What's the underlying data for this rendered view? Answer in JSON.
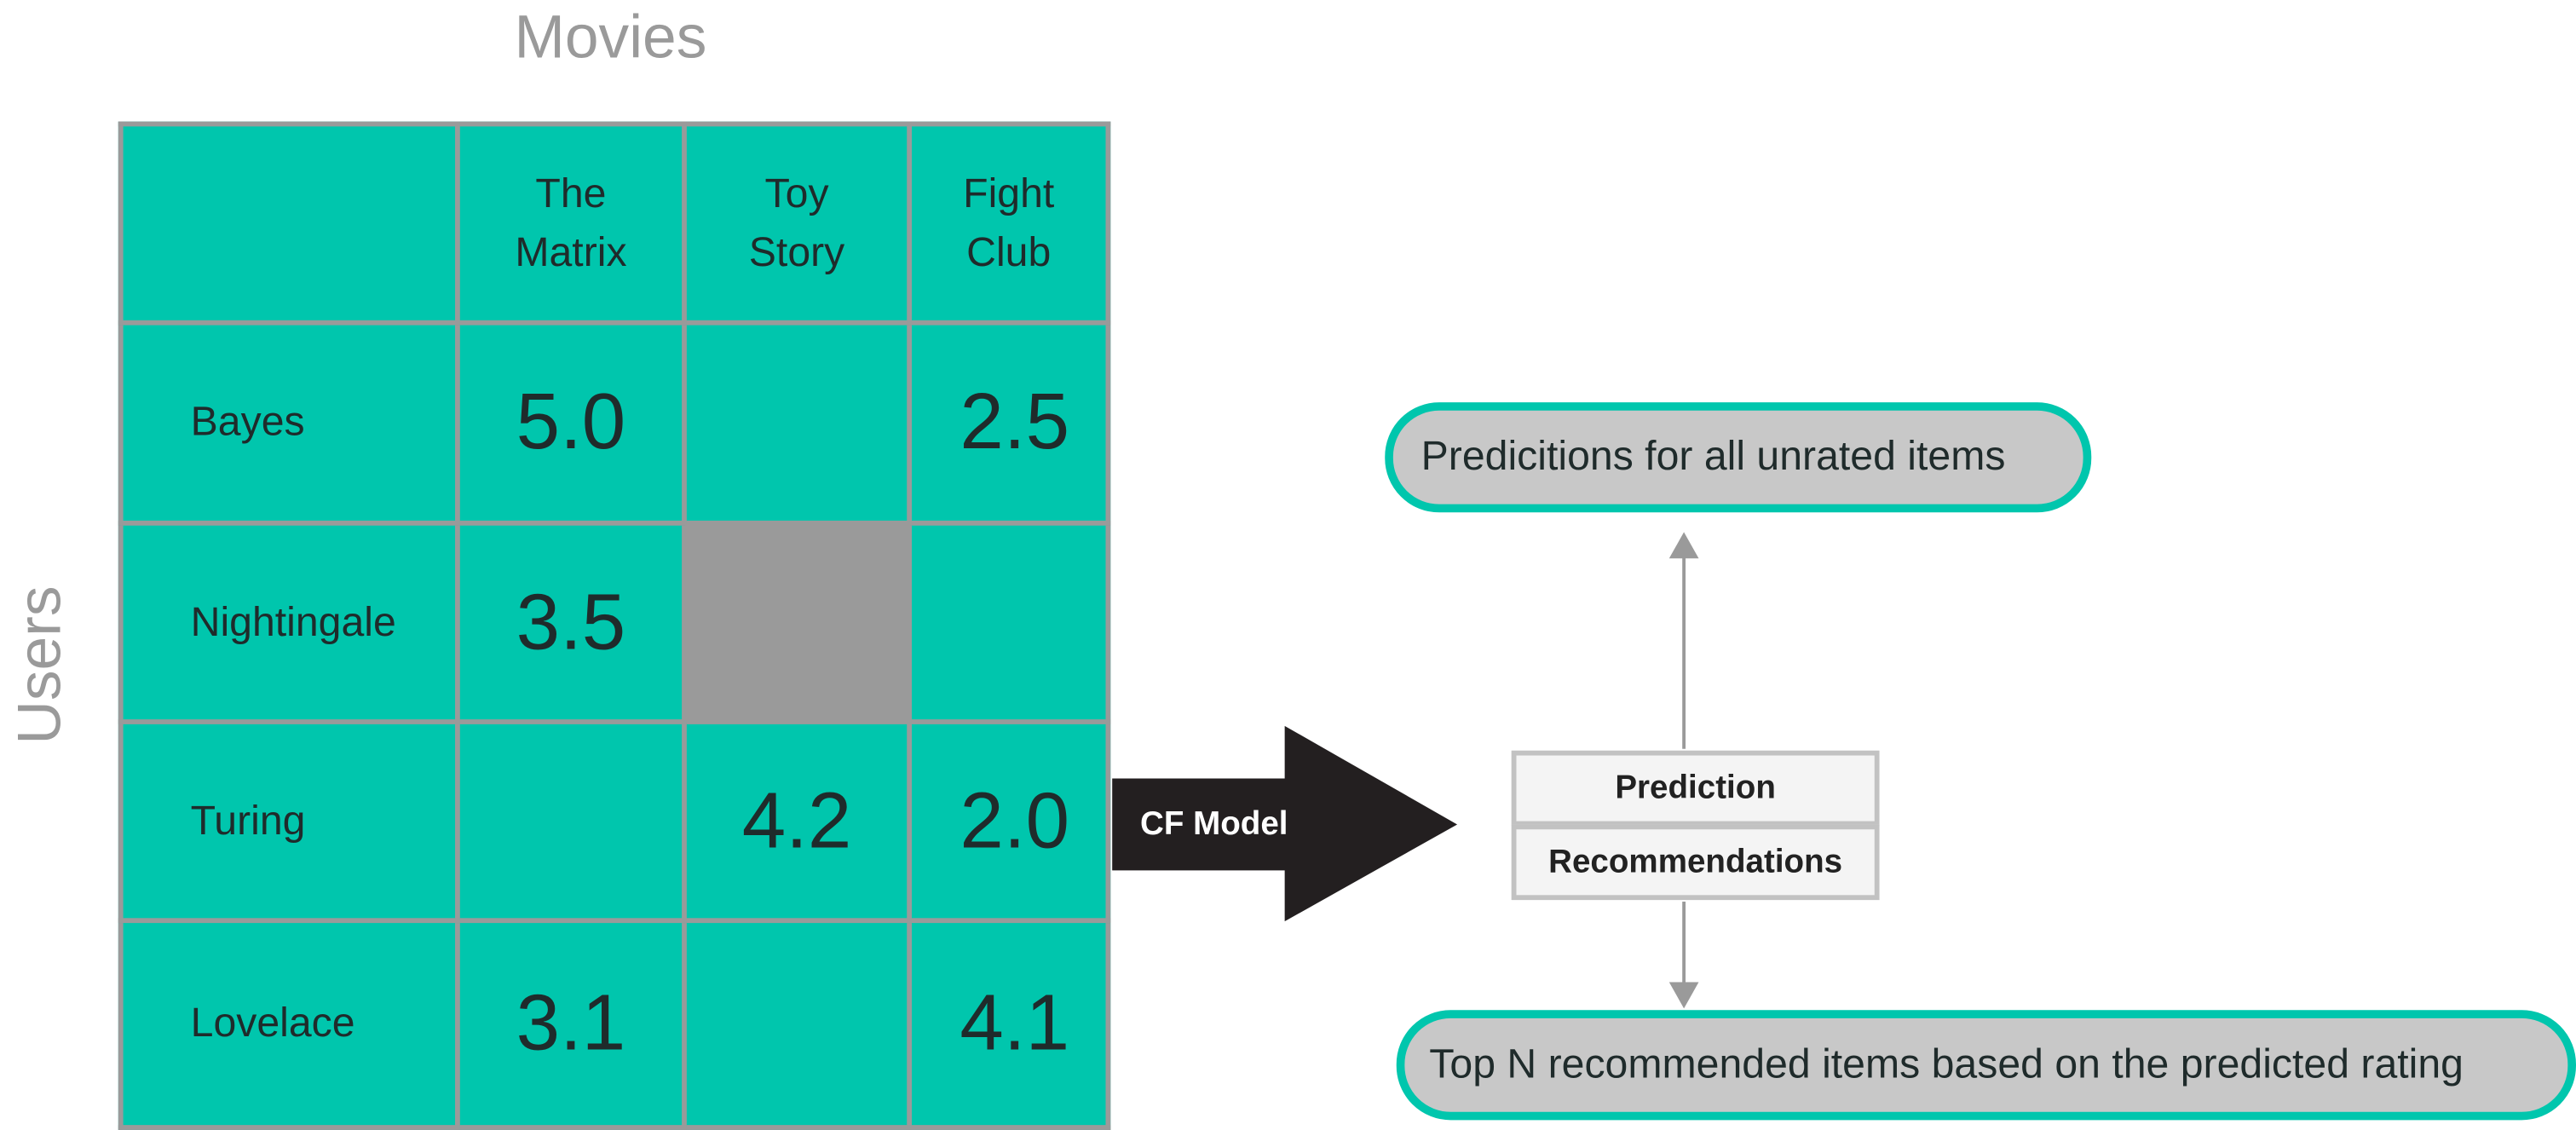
{
  "axis_titles": {
    "columns": "Movies",
    "rows": "Users"
  },
  "matrix": {
    "columns": [
      "The\nMatrix",
      "Toy\nStory",
      "Fight\nClub"
    ],
    "rows": [
      {
        "user": "Bayes",
        "ratings": [
          "5.0",
          "",
          "2.5"
        ]
      },
      {
        "user": "Nightingale",
        "ratings": [
          "3.5",
          "",
          ""
        ]
      },
      {
        "user": "Turing",
        "ratings": [
          "",
          "4.2",
          "2.0"
        ]
      },
      {
        "user": "Lovelace",
        "ratings": [
          "3.1",
          "",
          "4.1"
        ]
      }
    ]
  },
  "model": {
    "label": "CF Model"
  },
  "output_box": {
    "prediction": "Prediction",
    "recommendations": "Recommendations"
  },
  "outputs": {
    "predictions": "Predicitions for all unrated items",
    "recommendations": "Top N recommended items based on the predicted rating"
  },
  "colors": {
    "matrix_fill": "#00c6ad",
    "grid_line": "#9a9a9a",
    "missing_cell": "#9a9a9a",
    "arrow_fill": "#231f20",
    "pill_fill": "#c8c8c8",
    "pill_border": "#00c6ad",
    "connector": "#9a9a9a"
  }
}
